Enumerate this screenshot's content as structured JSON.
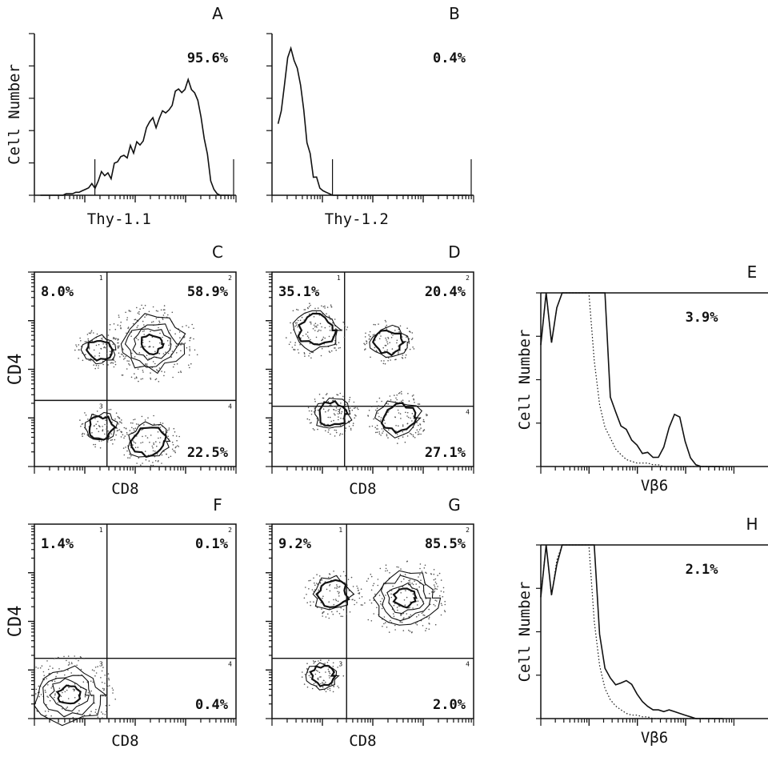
{
  "chart_data": [
    {
      "id": "A",
      "type": "histogram",
      "panel_label": "A",
      "xlabel": "Thy-1.1",
      "ylabel": "Cell Number",
      "annotation": "95.6%",
      "x_scale": "log (4 decades, unlabeled ticks)",
      "series": [
        {
          "name": "",
          "values": [
            0,
            0,
            0,
            0,
            0,
            0,
            0,
            0,
            0.01,
            0.01,
            0.01,
            0.02,
            0.02,
            0.03,
            0.04,
            0.05,
            0.06,
            0.07,
            0.08,
            0.1,
            0.11,
            0.13,
            0.15,
            0.17,
            0.2,
            0.22,
            0.24,
            0.27,
            0.3,
            0.32,
            0.35,
            0.37,
            0.4,
            0.42,
            0.45,
            0.48,
            0.5,
            0.52,
            0.54,
            0.57,
            0.6,
            0.62,
            0.65,
            0.67,
            0.7,
            0.72,
            0.74,
            0.75,
            0.73,
            0.66,
            0.54,
            0.38,
            0.22,
            0.1,
            0.04,
            0.01,
            0,
            0,
            0,
            0
          ]
        }
      ]
    },
    {
      "id": "B",
      "type": "histogram",
      "panel_label": "B",
      "xlabel": "Thy-1.2",
      "ylabel": "",
      "annotation": "0.4%",
      "x_scale": "log (4 decades, unlabeled ticks)",
      "series": [
        {
          "name": "",
          "values": [
            0.45,
            0.6,
            0.75,
            0.88,
            0.95,
            0.93,
            0.85,
            0.7,
            0.55,
            0.4,
            0.27,
            0.17,
            0.1,
            0.06,
            0.03,
            0.02,
            0.01,
            0,
            0,
            0,
            0,
            0,
            0,
            0,
            0,
            0,
            0,
            0,
            0,
            0,
            0,
            0,
            0,
            0,
            0,
            0,
            0,
            0,
            0,
            0,
            0,
            0,
            0,
            0,
            0,
            0,
            0,
            0,
            0,
            0,
            0,
            0,
            0,
            0,
            0,
            0,
            0,
            0,
            0,
            0
          ]
        }
      ]
    },
    {
      "id": "C",
      "type": "contour",
      "panel_label": "C",
      "xlabel": "CD8",
      "ylabel": "CD4",
      "quadrants": {
        "upper_left": "8.0%",
        "upper_right": "58.9%",
        "lower_right": "22.5%"
      },
      "populations": [
        {
          "name": "CD4+CD8+",
          "cx": 0.58,
          "cy": 0.63,
          "size": 0.85
        },
        {
          "name": "CD4+CD8-",
          "cx": 0.32,
          "cy": 0.6,
          "size": 0.35
        },
        {
          "name": "CD4-CD8+",
          "cx": 0.57,
          "cy": 0.13,
          "size": 0.5
        },
        {
          "name": "CD4-CD8-",
          "cx": 0.33,
          "cy": 0.2,
          "size": 0.35
        }
      ]
    },
    {
      "id": "D",
      "type": "contour",
      "panel_label": "D",
      "xlabel": "CD8",
      "ylabel": "",
      "quadrants": {
        "upper_left": "35.1%",
        "upper_right": "20.4%",
        "lower_right": "27.1%"
      },
      "populations": [
        {
          "name": "CD4+CD8-",
          "cx": 0.22,
          "cy": 0.7,
          "size": 0.55
        },
        {
          "name": "CD4+CD8+",
          "cx": 0.58,
          "cy": 0.64,
          "size": 0.4
        },
        {
          "name": "CD4-CD8+",
          "cx": 0.63,
          "cy": 0.25,
          "size": 0.5
        },
        {
          "name": "CD4-CD8-",
          "cx": 0.3,
          "cy": 0.27,
          "size": 0.4
        }
      ]
    },
    {
      "id": "E",
      "type": "histogram_overlay",
      "panel_label": "E",
      "xlabel": "Vβ6",
      "ylabel": "Cell Number",
      "annotation": "3.9%",
      "series": [
        {
          "name": "",
          "style": "solid",
          "values": [
            0.7,
            1.2,
            0.7,
            0.9,
            1.2,
            1.2,
            1.2,
            1.2,
            1.2,
            1.2,
            1.2,
            1.2,
            1.2,
            0.4,
            0.3,
            0.24,
            0.2,
            0.16,
            0.12,
            0.09,
            0.07,
            0.06,
            0.06,
            0.12,
            0.22,
            0.3,
            0.27,
            0.15,
            0.05,
            0.01,
            0,
            0,
            0,
            0,
            0
          ]
        },
        {
          "name": "",
          "style": "dotted",
          "values": [
            0.7,
            1.2,
            0.7,
            0.9,
            1.2,
            1.2,
            1.2,
            1.2,
            1.2,
            1.2,
            0.6,
            0.35,
            0.22,
            0.15,
            0.1,
            0.06,
            0.04,
            0.03,
            0.02,
            0.02,
            0.02,
            0.01,
            0.01,
            0,
            0,
            0,
            0,
            0,
            0,
            0,
            0,
            0,
            0,
            0,
            0
          ]
        }
      ]
    },
    {
      "id": "F",
      "type": "contour",
      "panel_label": "F",
      "xlabel": "CD8",
      "ylabel": "CD4",
      "quadrants": {
        "upper_left": "1.4%",
        "upper_right": "0.1%",
        "lower_right": "0.4%"
      },
      "populations": [
        {
          "name": "CD4-CD8-",
          "cx": 0.17,
          "cy": 0.12,
          "size": 0.85
        }
      ]
    },
    {
      "id": "G",
      "type": "contour",
      "panel_label": "G",
      "xlabel": "CD8",
      "ylabel": "",
      "quadrants": {
        "upper_left": "9.2%",
        "upper_right": "85.5%",
        "lower_right": "2.0%"
      },
      "populations": [
        {
          "name": "CD4+CD8+",
          "cx": 0.66,
          "cy": 0.62,
          "size": 0.8
        },
        {
          "name": "CD4+CD8-",
          "cx": 0.3,
          "cy": 0.64,
          "size": 0.45
        },
        {
          "name": "CD4-CD8-",
          "cx": 0.25,
          "cy": 0.22,
          "size": 0.3
        }
      ]
    },
    {
      "id": "H",
      "type": "histogram_overlay",
      "panel_label": "H",
      "xlabel": "Vβ6",
      "ylabel": "Cell Number",
      "annotation": "2.1%",
      "series": [
        {
          "name": "",
          "style": "solid",
          "values": [
            0.7,
            1.2,
            0.7,
            0.9,
            1.2,
            1.2,
            1.2,
            1.2,
            1.2,
            1.2,
            1.2,
            0.5,
            0.3,
            0.22,
            0.2,
            0.2,
            0.21,
            0.2,
            0.15,
            0.1,
            0.07,
            0.05,
            0.05,
            0.04,
            0.05,
            0.04,
            0.03,
            0.02,
            0.01,
            0,
            0,
            0,
            0,
            0,
            0
          ]
        },
        {
          "name": "",
          "style": "dotted",
          "values": [
            0.7,
            1.2,
            0.7,
            0.9,
            1.2,
            1.2,
            1.2,
            1.2,
            1.2,
            1.2,
            0.55,
            0.3,
            0.18,
            0.12,
            0.08,
            0.05,
            0.03,
            0.02,
            0.02,
            0.01,
            0.01,
            0,
            0,
            0,
            0,
            0,
            0,
            0,
            0,
            0,
            0,
            0,
            0,
            0,
            0
          ]
        }
      ]
    }
  ]
}
